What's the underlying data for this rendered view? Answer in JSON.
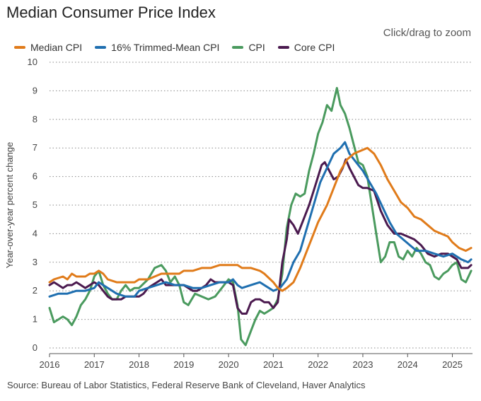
{
  "header": {
    "title": "Median Consumer Price Index",
    "zoom_hint": "Click/drag to zoom"
  },
  "source_note": "Source: Bureau of Labor Statistics, Federal Reserve Bank of Cleveland, Haver Analytics",
  "chart_data": {
    "type": "line",
    "title": "Median Consumer Price Index",
    "xlabel": "",
    "ylabel": "Year-over-year percent change",
    "xlim": [
      2016.0,
      2025.45
    ],
    "ylim": [
      0,
      10
    ],
    "x_ticks": [
      2016,
      2017,
      2018,
      2019,
      2020,
      2021,
      2022,
      2023,
      2024,
      2025
    ],
    "y_ticks": [
      0,
      1,
      2,
      3,
      4,
      5,
      6,
      7,
      8,
      9,
      10
    ],
    "grid": "horizontal-dotted",
    "legend_position": "top-left",
    "series": [
      {
        "name": "Median CPI",
        "color": "#e07b1a",
        "points": [
          [
            2016.0,
            2.3
          ],
          [
            2016.1,
            2.4
          ],
          [
            2016.3,
            2.5
          ],
          [
            2016.4,
            2.4
          ],
          [
            2016.5,
            2.6
          ],
          [
            2016.6,
            2.5
          ],
          [
            2016.8,
            2.5
          ],
          [
            2016.9,
            2.6
          ],
          [
            2017.0,
            2.6
          ],
          [
            2017.1,
            2.7
          ],
          [
            2017.2,
            2.6
          ],
          [
            2017.3,
            2.4
          ],
          [
            2017.5,
            2.3
          ],
          [
            2017.7,
            2.3
          ],
          [
            2017.9,
            2.3
          ],
          [
            2018.0,
            2.4
          ],
          [
            2018.2,
            2.4
          ],
          [
            2018.35,
            2.5
          ],
          [
            2018.5,
            2.6
          ],
          [
            2018.7,
            2.6
          ],
          [
            2018.9,
            2.6
          ],
          [
            2019.0,
            2.7
          ],
          [
            2019.2,
            2.7
          ],
          [
            2019.4,
            2.8
          ],
          [
            2019.6,
            2.8
          ],
          [
            2019.8,
            2.9
          ],
          [
            2020.0,
            2.9
          ],
          [
            2020.2,
            2.9
          ],
          [
            2020.3,
            2.8
          ],
          [
            2020.5,
            2.8
          ],
          [
            2020.7,
            2.7
          ],
          [
            2020.8,
            2.6
          ],
          [
            2021.0,
            2.3
          ],
          [
            2021.1,
            2.1
          ],
          [
            2021.2,
            2.0
          ],
          [
            2021.3,
            2.1
          ],
          [
            2021.45,
            2.3
          ],
          [
            2021.6,
            2.8
          ],
          [
            2021.75,
            3.4
          ],
          [
            2021.9,
            4.0
          ],
          [
            2022.0,
            4.4
          ],
          [
            2022.2,
            5.0
          ],
          [
            2022.35,
            5.6
          ],
          [
            2022.5,
            6.2
          ],
          [
            2022.65,
            6.6
          ],
          [
            2022.8,
            6.8
          ],
          [
            2022.95,
            6.9
          ],
          [
            2023.1,
            7.0
          ],
          [
            2023.25,
            6.8
          ],
          [
            2023.4,
            6.4
          ],
          [
            2023.55,
            5.9
          ],
          [
            2023.7,
            5.5
          ],
          [
            2023.85,
            5.1
          ],
          [
            2024.0,
            4.9
          ],
          [
            2024.15,
            4.6
          ],
          [
            2024.3,
            4.5
          ],
          [
            2024.45,
            4.3
          ],
          [
            2024.6,
            4.1
          ],
          [
            2024.75,
            4.0
          ],
          [
            2024.9,
            3.9
          ],
          [
            2025.0,
            3.7
          ],
          [
            2025.15,
            3.5
          ],
          [
            2025.3,
            3.4
          ],
          [
            2025.42,
            3.5
          ]
        ]
      },
      {
        "name": "16% Trimmed-Mean CPI",
        "color": "#1f6fb0",
        "points": [
          [
            2016.0,
            1.8
          ],
          [
            2016.2,
            1.9
          ],
          [
            2016.4,
            1.9
          ],
          [
            2016.6,
            2.0
          ],
          [
            2016.8,
            2.0
          ],
          [
            2017.0,
            2.1
          ],
          [
            2017.1,
            2.3
          ],
          [
            2017.3,
            2.1
          ],
          [
            2017.5,
            1.9
          ],
          [
            2017.7,
            1.8
          ],
          [
            2017.9,
            1.8
          ],
          [
            2018.0,
            2.0
          ],
          [
            2018.2,
            2.1
          ],
          [
            2018.4,
            2.2
          ],
          [
            2018.6,
            2.3
          ],
          [
            2018.8,
            2.2
          ],
          [
            2019.0,
            2.2
          ],
          [
            2019.2,
            2.1
          ],
          [
            2019.4,
            2.1
          ],
          [
            2019.6,
            2.2
          ],
          [
            2019.8,
            2.3
          ],
          [
            2020.0,
            2.3
          ],
          [
            2020.1,
            2.4
          ],
          [
            2020.2,
            2.2
          ],
          [
            2020.3,
            2.1
          ],
          [
            2020.5,
            2.2
          ],
          [
            2020.7,
            2.3
          ],
          [
            2020.9,
            2.1
          ],
          [
            2021.0,
            2.0
          ],
          [
            2021.15,
            2.1
          ],
          [
            2021.3,
            2.4
          ],
          [
            2021.45,
            3.0
          ],
          [
            2021.6,
            3.4
          ],
          [
            2021.75,
            4.2
          ],
          [
            2021.9,
            5.0
          ],
          [
            2022.05,
            5.8
          ],
          [
            2022.2,
            6.3
          ],
          [
            2022.35,
            6.8
          ],
          [
            2022.5,
            7.0
          ],
          [
            2022.6,
            7.2
          ],
          [
            2022.7,
            6.8
          ],
          [
            2022.85,
            6.5
          ],
          [
            2023.0,
            6.2
          ],
          [
            2023.15,
            5.8
          ],
          [
            2023.3,
            5.4
          ],
          [
            2023.45,
            4.9
          ],
          [
            2023.6,
            4.4
          ],
          [
            2023.75,
            4.0
          ],
          [
            2023.9,
            3.8
          ],
          [
            2024.05,
            3.6
          ],
          [
            2024.2,
            3.4
          ],
          [
            2024.4,
            3.4
          ],
          [
            2024.6,
            3.3
          ],
          [
            2024.8,
            3.2
          ],
          [
            2025.0,
            3.3
          ],
          [
            2025.2,
            3.1
          ],
          [
            2025.35,
            3.0
          ],
          [
            2025.42,
            3.1
          ]
        ]
      },
      {
        "name": "CPI",
        "color": "#4a9a5e",
        "points": [
          [
            2016.0,
            1.4
          ],
          [
            2016.1,
            0.9
          ],
          [
            2016.2,
            1.0
          ],
          [
            2016.3,
            1.1
          ],
          [
            2016.4,
            1.0
          ],
          [
            2016.5,
            0.8
          ],
          [
            2016.6,
            1.1
          ],
          [
            2016.7,
            1.5
          ],
          [
            2016.8,
            1.7
          ],
          [
            2016.9,
            2.0
          ],
          [
            2017.0,
            2.5
          ],
          [
            2017.1,
            2.7
          ],
          [
            2017.2,
            2.2
          ],
          [
            2017.3,
            1.9
          ],
          [
            2017.4,
            1.7
          ],
          [
            2017.5,
            1.7
          ],
          [
            2017.6,
            2.0
          ],
          [
            2017.7,
            2.2
          ],
          [
            2017.8,
            2.0
          ],
          [
            2017.9,
            2.1
          ],
          [
            2018.0,
            2.1
          ],
          [
            2018.2,
            2.4
          ],
          [
            2018.35,
            2.8
          ],
          [
            2018.5,
            2.9
          ],
          [
            2018.6,
            2.7
          ],
          [
            2018.7,
            2.3
          ],
          [
            2018.8,
            2.5
          ],
          [
            2018.9,
            2.2
          ],
          [
            2019.0,
            1.6
          ],
          [
            2019.1,
            1.5
          ],
          [
            2019.25,
            1.9
          ],
          [
            2019.4,
            1.8
          ],
          [
            2019.55,
            1.7
          ],
          [
            2019.7,
            1.8
          ],
          [
            2019.85,
            2.1
          ],
          [
            2020.0,
            2.4
          ],
          [
            2020.1,
            2.3
          ],
          [
            2020.2,
            1.5
          ],
          [
            2020.28,
            0.3
          ],
          [
            2020.38,
            0.1
          ],
          [
            2020.5,
            0.6
          ],
          [
            2020.6,
            1.0
          ],
          [
            2020.7,
            1.3
          ],
          [
            2020.8,
            1.2
          ],
          [
            2020.9,
            1.3
          ],
          [
            2021.0,
            1.4
          ],
          [
            2021.1,
            1.7
          ],
          [
            2021.2,
            2.6
          ],
          [
            2021.3,
            4.2
          ],
          [
            2021.4,
            5.0
          ],
          [
            2021.5,
            5.4
          ],
          [
            2021.6,
            5.3
          ],
          [
            2021.7,
            5.4
          ],
          [
            2021.8,
            6.2
          ],
          [
            2021.9,
            6.8
          ],
          [
            2022.0,
            7.5
          ],
          [
            2022.1,
            7.9
          ],
          [
            2022.2,
            8.5
          ],
          [
            2022.3,
            8.3
          ],
          [
            2022.42,
            9.1
          ],
          [
            2022.5,
            8.5
          ],
          [
            2022.6,
            8.2
          ],
          [
            2022.7,
            7.7
          ],
          [
            2022.8,
            7.1
          ],
          [
            2022.9,
            6.5
          ],
          [
            2023.0,
            6.4
          ],
          [
            2023.1,
            6.0
          ],
          [
            2023.2,
            5.0
          ],
          [
            2023.3,
            4.0
          ],
          [
            2023.4,
            3.0
          ],
          [
            2023.5,
            3.2
          ],
          [
            2023.6,
            3.7
          ],
          [
            2023.7,
            3.7
          ],
          [
            2023.8,
            3.2
          ],
          [
            2023.9,
            3.1
          ],
          [
            2024.0,
            3.4
          ],
          [
            2024.1,
            3.2
          ],
          [
            2024.2,
            3.5
          ],
          [
            2024.3,
            3.3
          ],
          [
            2024.4,
            3.0
          ],
          [
            2024.5,
            2.9
          ],
          [
            2024.6,
            2.5
          ],
          [
            2024.7,
            2.4
          ],
          [
            2024.8,
            2.6
          ],
          [
            2024.9,
            2.7
          ],
          [
            2025.0,
            2.9
          ],
          [
            2025.1,
            3.0
          ],
          [
            2025.2,
            2.4
          ],
          [
            2025.3,
            2.3
          ],
          [
            2025.42,
            2.7
          ]
        ]
      },
      {
        "name": "Core CPI",
        "color": "#4b1a4f",
        "points": [
          [
            2016.0,
            2.2
          ],
          [
            2016.1,
            2.3
          ],
          [
            2016.2,
            2.2
          ],
          [
            2016.3,
            2.1
          ],
          [
            2016.4,
            2.2
          ],
          [
            2016.5,
            2.2
          ],
          [
            2016.6,
            2.3
          ],
          [
            2016.7,
            2.2
          ],
          [
            2016.8,
            2.1
          ],
          [
            2016.9,
            2.2
          ],
          [
            2017.0,
            2.3
          ],
          [
            2017.1,
            2.2
          ],
          [
            2017.2,
            2.0
          ],
          [
            2017.3,
            1.8
          ],
          [
            2017.4,
            1.7
          ],
          [
            2017.5,
            1.7
          ],
          [
            2017.6,
            1.7
          ],
          [
            2017.7,
            1.8
          ],
          [
            2017.8,
            1.8
          ],
          [
            2017.9,
            1.8
          ],
          [
            2018.0,
            1.8
          ],
          [
            2018.1,
            1.9
          ],
          [
            2018.2,
            2.1
          ],
          [
            2018.3,
            2.2
          ],
          [
            2018.4,
            2.3
          ],
          [
            2018.5,
            2.4
          ],
          [
            2018.6,
            2.2
          ],
          [
            2018.7,
            2.2
          ],
          [
            2018.8,
            2.2
          ],
          [
            2018.9,
            2.2
          ],
          [
            2019.0,
            2.2
          ],
          [
            2019.1,
            2.1
          ],
          [
            2019.2,
            2.0
          ],
          [
            2019.3,
            2.0
          ],
          [
            2019.4,
            2.1
          ],
          [
            2019.5,
            2.2
          ],
          [
            2019.6,
            2.4
          ],
          [
            2019.7,
            2.3
          ],
          [
            2019.8,
            2.3
          ],
          [
            2019.9,
            2.3
          ],
          [
            2020.0,
            2.3
          ],
          [
            2020.1,
            2.2
          ],
          [
            2020.2,
            1.4
          ],
          [
            2020.3,
            1.2
          ],
          [
            2020.4,
            1.2
          ],
          [
            2020.5,
            1.6
          ],
          [
            2020.6,
            1.7
          ],
          [
            2020.7,
            1.7
          ],
          [
            2020.8,
            1.6
          ],
          [
            2020.9,
            1.6
          ],
          [
            2021.0,
            1.4
          ],
          [
            2021.1,
            1.6
          ],
          [
            2021.2,
            3.0
          ],
          [
            2021.3,
            3.8
          ],
          [
            2021.35,
            4.5
          ],
          [
            2021.45,
            4.3
          ],
          [
            2021.55,
            4.0
          ],
          [
            2021.7,
            4.6
          ],
          [
            2021.8,
            5.0
          ],
          [
            2021.9,
            5.5
          ],
          [
            2022.0,
            6.0
          ],
          [
            2022.08,
            6.4
          ],
          [
            2022.15,
            6.5
          ],
          [
            2022.25,
            6.2
          ],
          [
            2022.35,
            5.9
          ],
          [
            2022.45,
            6.0
          ],
          [
            2022.55,
            6.3
          ],
          [
            2022.62,
            6.6
          ],
          [
            2022.7,
            6.3
          ],
          [
            2022.8,
            6.0
          ],
          [
            2022.9,
            5.7
          ],
          [
            2023.0,
            5.6
          ],
          [
            2023.1,
            5.6
          ],
          [
            2023.25,
            5.5
          ],
          [
            2023.4,
            4.8
          ],
          [
            2023.55,
            4.3
          ],
          [
            2023.7,
            4.0
          ],
          [
            2023.85,
            4.0
          ],
          [
            2024.0,
            3.9
          ],
          [
            2024.15,
            3.8
          ],
          [
            2024.3,
            3.6
          ],
          [
            2024.45,
            3.3
          ],
          [
            2024.6,
            3.2
          ],
          [
            2024.75,
            3.3
          ],
          [
            2024.9,
            3.3
          ],
          [
            2025.0,
            3.2
          ],
          [
            2025.1,
            3.1
          ],
          [
            2025.2,
            2.8
          ],
          [
            2025.35,
            2.8
          ],
          [
            2025.42,
            2.9
          ]
        ]
      }
    ]
  }
}
